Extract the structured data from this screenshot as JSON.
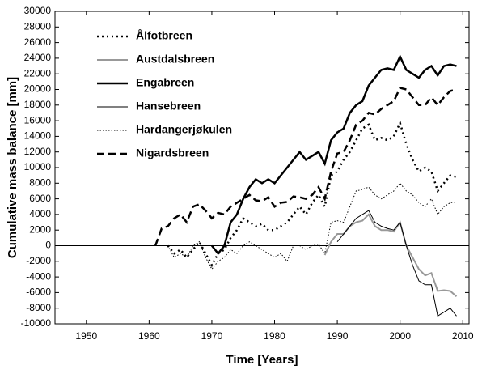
{
  "chart_data": {
    "type": "line",
    "xlabel": "Time [Years]",
    "ylabel": "Cumulative mass balance [mm]",
    "x": [
      1961,
      1962,
      1963,
      1964,
      1965,
      1966,
      1967,
      1968,
      1969,
      1970,
      1971,
      1972,
      1973,
      1974,
      1975,
      1976,
      1977,
      1978,
      1979,
      1980,
      1981,
      1982,
      1983,
      1984,
      1985,
      1986,
      1987,
      1988,
      1989,
      1990,
      1991,
      1992,
      1993,
      1994,
      1995,
      1996,
      1997,
      1998,
      1999,
      2000,
      2001,
      2002,
      2003,
      2004,
      2005,
      2006,
      2007,
      2008,
      2009
    ],
    "series": [
      {
        "name": "Ålfotbreen",
        "color": "#000000",
        "width": 2.5,
        "dash": "2,4",
        "values": [
          null,
          null,
          0,
          -1000,
          -500,
          -1500,
          -500,
          500,
          -1000,
          -2500,
          -1000,
          -500,
          1000,
          2000,
          3500,
          3000,
          2500,
          2800,
          2000,
          2000,
          2500,
          3000,
          4000,
          5000,
          4000,
          5500,
          6500,
          5000,
          9000,
          9500,
          11000,
          12000,
          13500,
          15000,
          15500,
          13500,
          13800,
          13500,
          14000,
          15700,
          13000,
          11000,
          9500,
          10000,
          9500,
          7000,
          8000,
          9000,
          8800
        ]
      },
      {
        "name": "Austdalsbreen",
        "color": "#999999",
        "width": 2,
        "dash": "none",
        "values": [
          null,
          null,
          null,
          null,
          null,
          null,
          null,
          null,
          null,
          null,
          null,
          null,
          null,
          null,
          null,
          null,
          null,
          null,
          null,
          null,
          null,
          null,
          null,
          null,
          null,
          null,
          null,
          -1200,
          500,
          1500,
          1500,
          2500,
          3000,
          3200,
          4000,
          2500,
          2000,
          2000,
          1800,
          3000,
          0,
          -1500,
          -3000,
          -3800,
          -3500,
          -5800,
          -5700,
          -5800,
          -6500
        ]
      },
      {
        "name": "Engabreen",
        "color": "#000000",
        "width": 2.5,
        "dash": "none",
        "values": [
          null,
          null,
          null,
          null,
          null,
          null,
          null,
          null,
          null,
          0,
          -1000,
          0,
          3000,
          4000,
          6000,
          7500,
          8500,
          8000,
          8500,
          8000,
          9000,
          10000,
          11000,
          12000,
          11000,
          11500,
          12000,
          10500,
          13500,
          14500,
          15000,
          17000,
          18000,
          18500,
          20500,
          21500,
          22500,
          22700,
          22500,
          24200,
          22500,
          22000,
          21500,
          22500,
          23000,
          21800,
          23000,
          23200,
          23000
        ]
      },
      {
        "name": "Hansebreen",
        "color": "#000000",
        "width": 1,
        "dash": "none",
        "values": [
          null,
          null,
          null,
          null,
          null,
          null,
          null,
          null,
          null,
          null,
          null,
          null,
          null,
          null,
          null,
          null,
          null,
          null,
          null,
          null,
          null,
          null,
          null,
          null,
          null,
          null,
          null,
          null,
          null,
          500,
          1500,
          2500,
          3500,
          4000,
          4500,
          3000,
          2500,
          2200,
          2000,
          3000,
          0,
          -2500,
          -4500,
          -5000,
          -5000,
          -9000,
          -8500,
          -8000,
          -9000
        ]
      },
      {
        "name": "Hardangerjøkulen",
        "color": "#000000",
        "width": 1,
        "dash": "1.5,2",
        "values": [
          null,
          null,
          0,
          -1500,
          -1000,
          -1500,
          0,
          500,
          -1500,
          -3000,
          -2000,
          -1500,
          -500,
          -1000,
          0,
          500,
          0,
          -500,
          -1000,
          -1500,
          -1000,
          -2000,
          0,
          0,
          -500,
          0,
          200,
          -1000,
          3000,
          3200,
          3000,
          5000,
          7000,
          7200,
          7500,
          6500,
          6000,
          6500,
          7000,
          8000,
          7000,
          6500,
          5500,
          5000,
          6000,
          4000,
          5000,
          5500,
          5600
        ]
      },
      {
        "name": "Nigardsbreen",
        "color": "#000000",
        "width": 2.5,
        "dash": "9,5",
        "values": [
          0,
          2200,
          2500,
          3500,
          4000,
          3000,
          5000,
          5300,
          4500,
          3500,
          4200,
          4000,
          5000,
          5500,
          6000,
          6500,
          5800,
          5700,
          6200,
          5000,
          5500,
          5600,
          6300,
          6200,
          6000,
          6500,
          7500,
          6000,
          9500,
          11800,
          12000,
          13500,
          15500,
          16000,
          17000,
          16800,
          17500,
          18000,
          18500,
          20200,
          20000,
          19000,
          18000,
          18000,
          19000,
          18000,
          19000,
          19800,
          20000
        ]
      }
    ],
    "xlim": [
      1945,
      2011
    ],
    "xticks": [
      1950,
      1960,
      1970,
      1980,
      1990,
      2000,
      2010
    ],
    "ylim": [
      -10000,
      30000
    ],
    "yticks": [
      -10000,
      -8000,
      -6000,
      -4000,
      -2000,
      0,
      2000,
      4000,
      6000,
      8000,
      10000,
      12000,
      14000,
      16000,
      18000,
      20000,
      22000,
      24000,
      26000,
      28000,
      30000
    ],
    "zero_line": true,
    "legend": "upper left"
  }
}
